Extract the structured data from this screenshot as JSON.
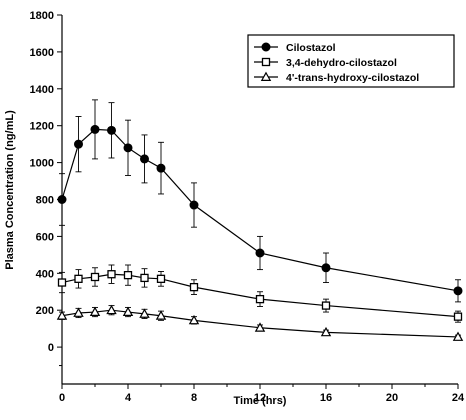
{
  "chart_data": {
    "type": "line",
    "xlabel": "Time (hrs)",
    "ylabel": "Plasma Concentration (ng/mL)",
    "xlim": [
      0,
      24
    ],
    "ylim": [
      -200,
      1800
    ],
    "x_ticks": [
      0,
      4,
      8,
      12,
      16,
      20,
      24
    ],
    "y_ticks": [
      0,
      200,
      400,
      600,
      800,
      1000,
      1200,
      1400,
      1600,
      1800
    ],
    "grid": false,
    "legend_position": "top-right",
    "series": [
      {
        "name": "Cilostazol",
        "marker": "circle-filled",
        "x": [
          0,
          1,
          2,
          3,
          4,
          5,
          6,
          8,
          12,
          16,
          24
        ],
        "y": [
          800,
          1100,
          1180,
          1175,
          1080,
          1020,
          970,
          770,
          510,
          430,
          305
        ],
        "error": [
          140,
          150,
          160,
          150,
          150,
          130,
          140,
          120,
          90,
          80,
          60
        ]
      },
      {
        "name": "3,4-dehydro-cilostazol",
        "marker": "square-open",
        "x": [
          0,
          1,
          2,
          3,
          4,
          5,
          6,
          8,
          12,
          16,
          24
        ],
        "y": [
          350,
          370,
          380,
          395,
          390,
          375,
          370,
          325,
          260,
          225,
          165
        ],
        "error": [
          55,
          50,
          50,
          50,
          55,
          50,
          40,
          40,
          40,
          35,
          30
        ]
      },
      {
        "name": "4'-trans-hydroxy-cilostazol",
        "marker": "triangle-open",
        "x": [
          0,
          1,
          2,
          3,
          4,
          5,
          6,
          8,
          12,
          16,
          24
        ],
        "y": [
          170,
          185,
          190,
          200,
          190,
          180,
          170,
          145,
          105,
          80,
          55
        ],
        "error": [
          20,
          25,
          25,
          25,
          25,
          25,
          25,
          20,
          15,
          12,
          10
        ]
      }
    ]
  }
}
